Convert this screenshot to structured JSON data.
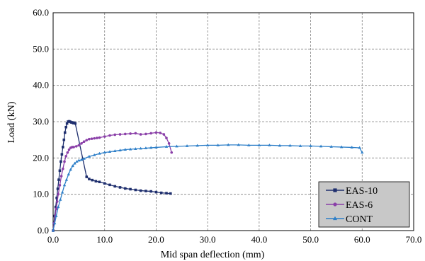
{
  "chart_data": {
    "type": "line",
    "xlabel": "Mid span deflection (mm)",
    "ylabel": "Load (kN)",
    "xlim": [
      0,
      70
    ],
    "ylim": [
      0,
      60
    ],
    "xticks": [
      "0.0",
      "10.0",
      "20.0",
      "30.0",
      "40.0",
      "50.0",
      "60.0",
      "70.0"
    ],
    "yticks": [
      "0.0",
      "10.0",
      "20.0",
      "30.0",
      "40.0",
      "50.0",
      "60.0"
    ],
    "grid": true,
    "legend_position": "bottom-right",
    "series": [
      {
        "name": "EAS-10",
        "color": "#1f2f6e",
        "marker": "square",
        "x": [
          0,
          0.15,
          0.3,
          0.5,
          0.7,
          0.9,
          1.1,
          1.3,
          1.5,
          1.7,
          1.9,
          2.1,
          2.3,
          2.5,
          2.7,
          2.9,
          3.1,
          3.3,
          3.5,
          3.7,
          3.9,
          4.1,
          4.3,
          6.5,
          7.0,
          7.6,
          8.3,
          9.0,
          10.0,
          11.0,
          12.0,
          13.0,
          14.0,
          15.0,
          16.0,
          17.0,
          18.0,
          19.0,
          20.0,
          21.0,
          22.0,
          22.8
        ],
        "y": [
          0,
          2.0,
          4.0,
          6.5,
          9.0,
          11.5,
          14.0,
          16.5,
          19.0,
          21.0,
          23.0,
          25.0,
          27.0,
          28.5,
          29.5,
          30.0,
          30.1,
          30.0,
          29.8,
          29.8,
          29.6,
          29.7,
          29.5,
          14.8,
          14.2,
          13.9,
          13.6,
          13.4,
          13.0,
          12.6,
          12.2,
          11.9,
          11.6,
          11.4,
          11.2,
          11.0,
          10.9,
          10.8,
          10.6,
          10.4,
          10.3,
          10.2
        ]
      },
      {
        "name": "EAS-6",
        "color": "#8a3fa8",
        "marker": "circle",
        "x": [
          0,
          0.2,
          0.4,
          0.6,
          0.8,
          1.0,
          1.3,
          1.6,
          1.9,
          2.2,
          2.5,
          2.8,
          3.1,
          3.4,
          3.7,
          4.0,
          4.5,
          5.0,
          5.5,
          6.0,
          6.5,
          7.0,
          7.5,
          8.0,
          8.5,
          9.0,
          10.0,
          11.0,
          12.0,
          13.0,
          14.0,
          15.0,
          16.0,
          17.0,
          18.0,
          19.0,
          20.0,
          20.8,
          21.5,
          22.0,
          22.5,
          23.0
        ],
        "y": [
          0,
          2.0,
          4.0,
          6.0,
          8.0,
          10.0,
          12.5,
          15.0,
          17.0,
          19.0,
          20.5,
          21.5,
          22.3,
          22.8,
          23.0,
          23.0,
          23.2,
          23.5,
          24.0,
          24.5,
          24.9,
          25.2,
          25.3,
          25.4,
          25.5,
          25.6,
          25.9,
          26.2,
          26.4,
          26.5,
          26.6,
          26.7,
          26.8,
          26.5,
          26.6,
          26.8,
          27.0,
          26.9,
          26.5,
          25.5,
          24.0,
          21.5
        ]
      },
      {
        "name": "CONT",
        "color": "#2e7fc8",
        "marker": "triangle",
        "x": [
          0,
          0.3,
          0.6,
          1.0,
          1.4,
          1.8,
          2.2,
          2.6,
          3.0,
          3.4,
          3.8,
          4.2,
          4.6,
          5.0,
          5.5,
          6.0,
          7.0,
          8.0,
          9.0,
          10.0,
          11.0,
          12.0,
          13.0,
          14.0,
          15.0,
          16.0,
          17.0,
          18.0,
          19.0,
          20.0,
          22.0,
          24.0,
          26.0,
          28.0,
          30.0,
          32.0,
          34.0,
          36.0,
          38.0,
          40.0,
          42.0,
          44.0,
          46.0,
          48.0,
          50.0,
          52.0,
          54.0,
          56.0,
          58.0,
          59.5,
          60.0
        ],
        "y": [
          0,
          2.0,
          4.0,
          6.5,
          8.5,
          10.5,
          12.5,
          14.0,
          15.5,
          16.8,
          17.8,
          18.5,
          19.0,
          19.3,
          19.5,
          19.8,
          20.4,
          20.8,
          21.2,
          21.5,
          21.7,
          21.9,
          22.1,
          22.3,
          22.4,
          22.5,
          22.6,
          22.7,
          22.8,
          22.9,
          23.1,
          23.2,
          23.3,
          23.4,
          23.5,
          23.5,
          23.6,
          23.6,
          23.5,
          23.5,
          23.5,
          23.4,
          23.4,
          23.3,
          23.3,
          23.2,
          23.1,
          23.0,
          22.9,
          22.8,
          21.5
        ]
      }
    ]
  }
}
